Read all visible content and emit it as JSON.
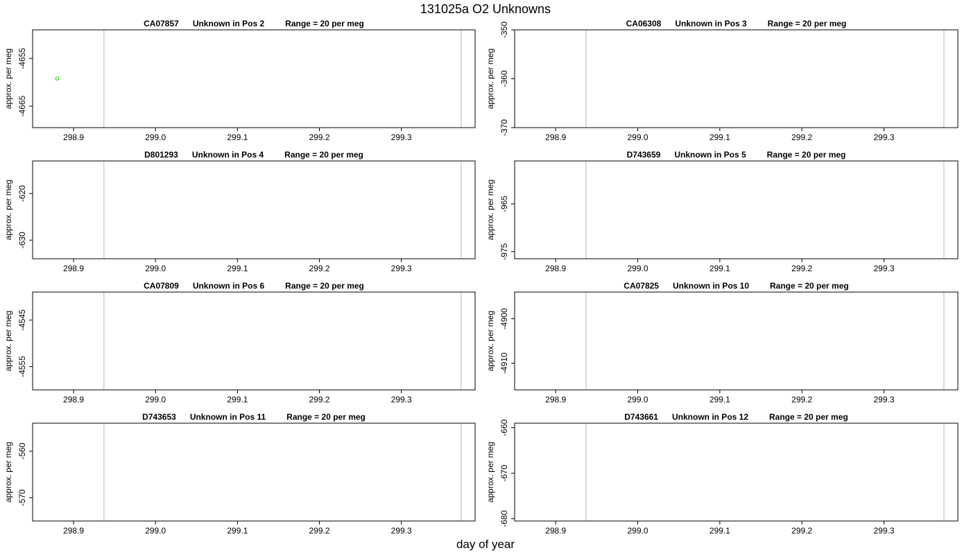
{
  "title": "131025a  O2 Unknowns",
  "xlabel": "day of year",
  "chart_data": [
    {
      "type": "scatter",
      "title": {
        "id": "CA07857",
        "desc": "Unknown in Pos 2",
        "range": "Range = 20 per meg"
      },
      "ylabel": "approx. per meg",
      "xlim": [
        298.85,
        299.39
      ],
      "ylim": [
        -4669.5,
        -4649
      ],
      "xticks": [
        "298.9",
        "299.0",
        "299.1",
        "299.2",
        "299.3"
      ],
      "yticks": [
        "-4655",
        "-4665"
      ],
      "vlines": [
        298.937,
        299.373
      ],
      "points": [
        {
          "x": 298.88,
          "y": -4659.2,
          "color": "#00cc00"
        }
      ]
    },
    {
      "type": "scatter",
      "title": {
        "id": "CA06308",
        "desc": "Unknown in Pos 3",
        "range": "Range = 20 per meg"
      },
      "ylabel": "approx. per meg",
      "xlim": [
        298.85,
        299.39
      ],
      "ylim": [
        -370,
        -350
      ],
      "xticks": [
        "298.9",
        "299.0",
        "299.1",
        "299.2",
        "299.3"
      ],
      "yticks": [
        "-350",
        "-360",
        "-370"
      ],
      "vlines": [
        298.937,
        299.373
      ],
      "points": []
    },
    {
      "type": "scatter",
      "title": {
        "id": "D801293",
        "desc": "Unknown in Pos 4",
        "range": "Range = 20 per meg"
      },
      "ylabel": "approx. per meg",
      "xlim": [
        298.85,
        299.39
      ],
      "ylim": [
        -634,
        -613
      ],
      "xticks": [
        "298.9",
        "299.0",
        "299.1",
        "299.2",
        "299.3"
      ],
      "yticks": [
        "-620",
        "-630"
      ],
      "vlines": [
        298.937,
        299.373
      ],
      "points": []
    },
    {
      "type": "scatter",
      "title": {
        "id": "D743659",
        "desc": "Unknown in Pos 5",
        "range": "Range = 20 per meg"
      },
      "ylabel": "approx. per meg",
      "xlim": [
        298.85,
        299.39
      ],
      "ylim": [
        -976.5,
        -956
      ],
      "xticks": [
        "298.9",
        "299.0",
        "299.1",
        "299.2",
        "299.3"
      ],
      "yticks": [
        "-965",
        "-975"
      ],
      "vlines": [
        298.937,
        299.373
      ],
      "points": []
    },
    {
      "type": "scatter",
      "title": {
        "id": "CA07809",
        "desc": "Unknown in Pos 6",
        "range": "Range = 20 per meg"
      },
      "ylabel": "approx. per meg",
      "xlim": [
        298.85,
        299.39
      ],
      "ylim": [
        -4560,
        -4539
      ],
      "xticks": [
        "298.9",
        "299.0",
        "299.1",
        "299.2",
        "299.3"
      ],
      "yticks": [
        "-4545",
        "-4555"
      ],
      "vlines": [
        298.937,
        299.373
      ],
      "points": []
    },
    {
      "type": "scatter",
      "title": {
        "id": "CA07825",
        "desc": "Unknown in Pos 10",
        "range": "Range = 20 per meg"
      },
      "ylabel": "approx. per meg",
      "xlim": [
        298.85,
        299.39
      ],
      "ylim": [
        -4916,
        -4894
      ],
      "xticks": [
        "298.9",
        "299.0",
        "299.1",
        "299.2",
        "299.3"
      ],
      "yticks": [
        "-4900",
        "-4910"
      ],
      "vlines": [
        298.937,
        299.373
      ],
      "points": []
    },
    {
      "type": "scatter",
      "title": {
        "id": "D743653",
        "desc": "Unknown in Pos 11",
        "range": "Range = 20 per meg"
      },
      "ylabel": "approx. per meg",
      "xlim": [
        298.85,
        299.39
      ],
      "ylim": [
        -575,
        -554
      ],
      "xticks": [
        "298.9",
        "299.0",
        "299.1",
        "299.2",
        "299.3"
      ],
      "yticks": [
        "-560",
        "-570"
      ],
      "vlines": [
        298.937,
        299.373
      ],
      "points": []
    },
    {
      "type": "scatter",
      "title": {
        "id": "D743661",
        "desc": "Unknown in Pos 12",
        "range": "Range = 20 per meg"
      },
      "ylabel": "approx. per meg",
      "xlim": [
        298.85,
        299.39
      ],
      "ylim": [
        -680.5,
        -659
      ],
      "xticks": [
        "298.9",
        "299.0",
        "299.1",
        "299.2",
        "299.3"
      ],
      "yticks": [
        "-660",
        "-670",
        "-680"
      ],
      "vlines": [
        298.937,
        299.373
      ],
      "points": []
    }
  ]
}
